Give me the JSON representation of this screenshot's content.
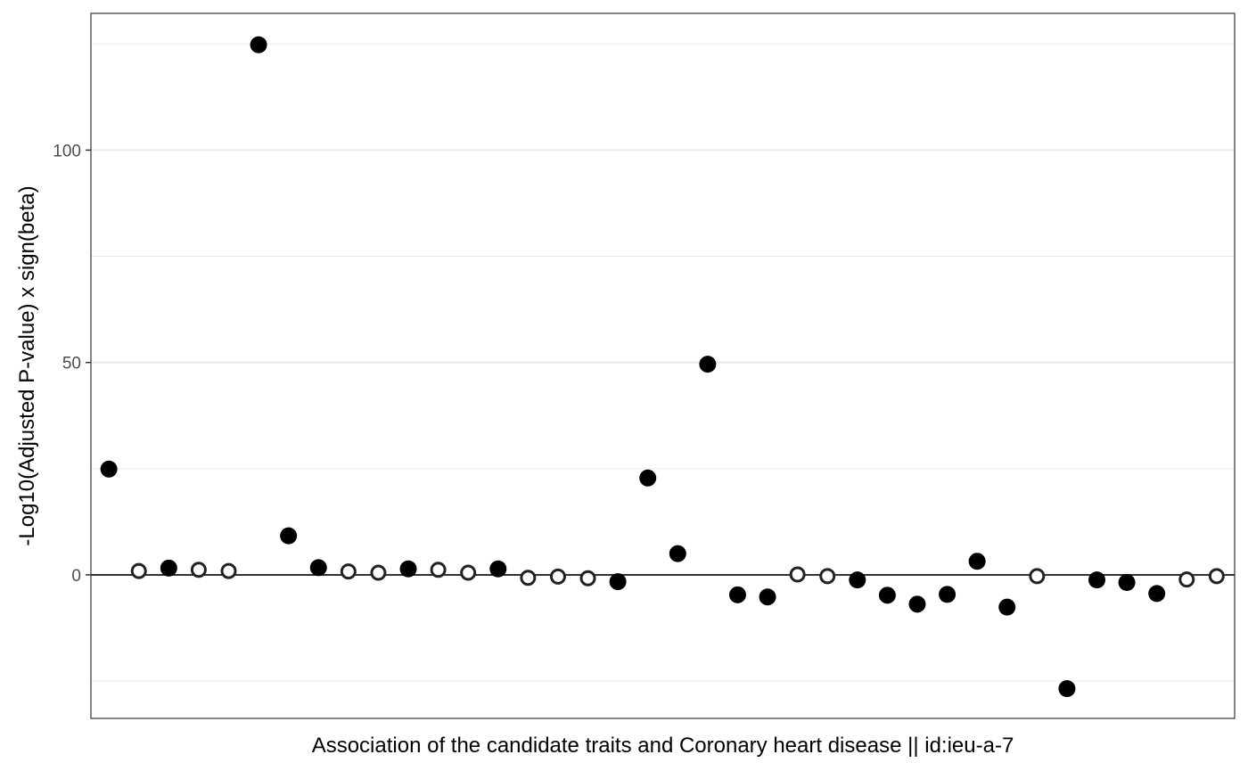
{
  "chart_data": {
    "type": "scatter",
    "title": "",
    "xlabel": "Association of the candidate traits and Coronary heart disease || id:ieu-a-7",
    "ylabel": "-Log10(Adjusted P-value) x sign(beta)",
    "ylim": [
      -33.8,
      132.2
    ],
    "xlim": [
      0.4,
      38.6
    ],
    "y_ticks": [
      0,
      50,
      100
    ],
    "y_tick_labels": [
      "0",
      "50",
      "100"
    ],
    "y_minor_ticks": [
      -25,
      25,
      75,
      125
    ],
    "x_tick_labels": [],
    "grid": true,
    "reference_line_y": 0,
    "legend": "none",
    "marker_styles": {
      "significant": "filled circle",
      "not_significant": "open circle"
    },
    "colors": {
      "point": "#000000",
      "open_point_stroke": "#222222",
      "grid": "#ebebeb",
      "panel_border": "#333333",
      "zero_line": "#333333"
    },
    "points": [
      {
        "x": 1,
        "y": 24.9,
        "significant": true
      },
      {
        "x": 2,
        "y": 0.9,
        "significant": false
      },
      {
        "x": 3,
        "y": 1.6,
        "significant": true
      },
      {
        "x": 4,
        "y": 1.2,
        "significant": false
      },
      {
        "x": 5,
        "y": 0.9,
        "significant": false
      },
      {
        "x": 6,
        "y": 124.8,
        "significant": true
      },
      {
        "x": 7,
        "y": 9.2,
        "significant": true
      },
      {
        "x": 8,
        "y": 1.7,
        "significant": true
      },
      {
        "x": 9,
        "y": 0.8,
        "significant": false
      },
      {
        "x": 10,
        "y": 0.5,
        "significant": false
      },
      {
        "x": 11,
        "y": 1.4,
        "significant": true
      },
      {
        "x": 12,
        "y": 1.2,
        "significant": false
      },
      {
        "x": 13,
        "y": 0.5,
        "significant": false
      },
      {
        "x": 14,
        "y": 1.4,
        "significant": true
      },
      {
        "x": 15,
        "y": -0.7,
        "significant": false
      },
      {
        "x": 16,
        "y": -0.4,
        "significant": false
      },
      {
        "x": 17,
        "y": -0.8,
        "significant": false
      },
      {
        "x": 18,
        "y": -1.6,
        "significant": true
      },
      {
        "x": 19,
        "y": 22.8,
        "significant": true
      },
      {
        "x": 20,
        "y": 5.0,
        "significant": true
      },
      {
        "x": 21,
        "y": 49.6,
        "significant": true
      },
      {
        "x": 22,
        "y": -4.7,
        "significant": true
      },
      {
        "x": 23,
        "y": -5.2,
        "significant": true
      },
      {
        "x": 24,
        "y": 0.1,
        "significant": false
      },
      {
        "x": 25,
        "y": -0.3,
        "significant": false
      },
      {
        "x": 26,
        "y": -1.2,
        "significant": true
      },
      {
        "x": 27,
        "y": -4.8,
        "significant": true
      },
      {
        "x": 28,
        "y": -6.9,
        "significant": true
      },
      {
        "x": 29,
        "y": -4.6,
        "significant": true
      },
      {
        "x": 30,
        "y": 3.2,
        "significant": true
      },
      {
        "x": 31,
        "y": -7.6,
        "significant": true
      },
      {
        "x": 32,
        "y": -0.3,
        "significant": false
      },
      {
        "x": 33,
        "y": -26.8,
        "significant": true
      },
      {
        "x": 34,
        "y": -1.2,
        "significant": true
      },
      {
        "x": 35,
        "y": -1.8,
        "significant": true
      },
      {
        "x": 36,
        "y": -4.4,
        "significant": true
      },
      {
        "x": 37,
        "y": -1.1,
        "significant": false
      },
      {
        "x": 38,
        "y": -0.3,
        "significant": false
      }
    ]
  }
}
